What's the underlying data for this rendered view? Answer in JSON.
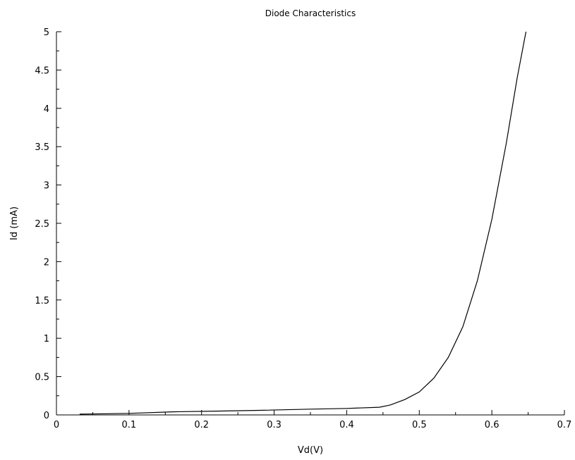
{
  "chart_data": {
    "type": "line",
    "title": "Diode Characteristics",
    "xlabel": "Vd(V)",
    "ylabel": "Id (mA)",
    "xlim": [
      0,
      0.7
    ],
    "ylim": [
      0,
      5
    ],
    "xticks": [
      0,
      0.1,
      0.2,
      0.3,
      0.4,
      0.5,
      0.6,
      0.7
    ],
    "xtick_labels": [
      "0",
      "0.1",
      "0.2",
      "0.3",
      "0.4",
      "0.5",
      "0.6",
      "0.7"
    ],
    "yticks": [
      0,
      0.5,
      1,
      1.5,
      2,
      2.5,
      3,
      3.5,
      4,
      4.5,
      5
    ],
    "ytick_labels": [
      "0",
      "0.5",
      "1",
      "1.5",
      "2",
      "2.5",
      "3",
      "3.5",
      "4",
      "4.5",
      "5"
    ],
    "grid": false,
    "series": [
      {
        "color": "#000000",
        "x": [
          0.032,
          0.1,
          0.16,
          0.22,
          0.28,
          0.35,
          0.4,
          0.445,
          0.46,
          0.48,
          0.5,
          0.52,
          0.54,
          0.56,
          0.58,
          0.6,
          0.62,
          0.635,
          0.647
        ],
        "y": [
          0.01,
          0.02,
          0.04,
          0.05,
          0.06,
          0.075,
          0.085,
          0.1,
          0.13,
          0.2,
          0.3,
          0.48,
          0.75,
          1.15,
          1.75,
          2.55,
          3.55,
          4.4,
          5.0
        ]
      }
    ]
  }
}
